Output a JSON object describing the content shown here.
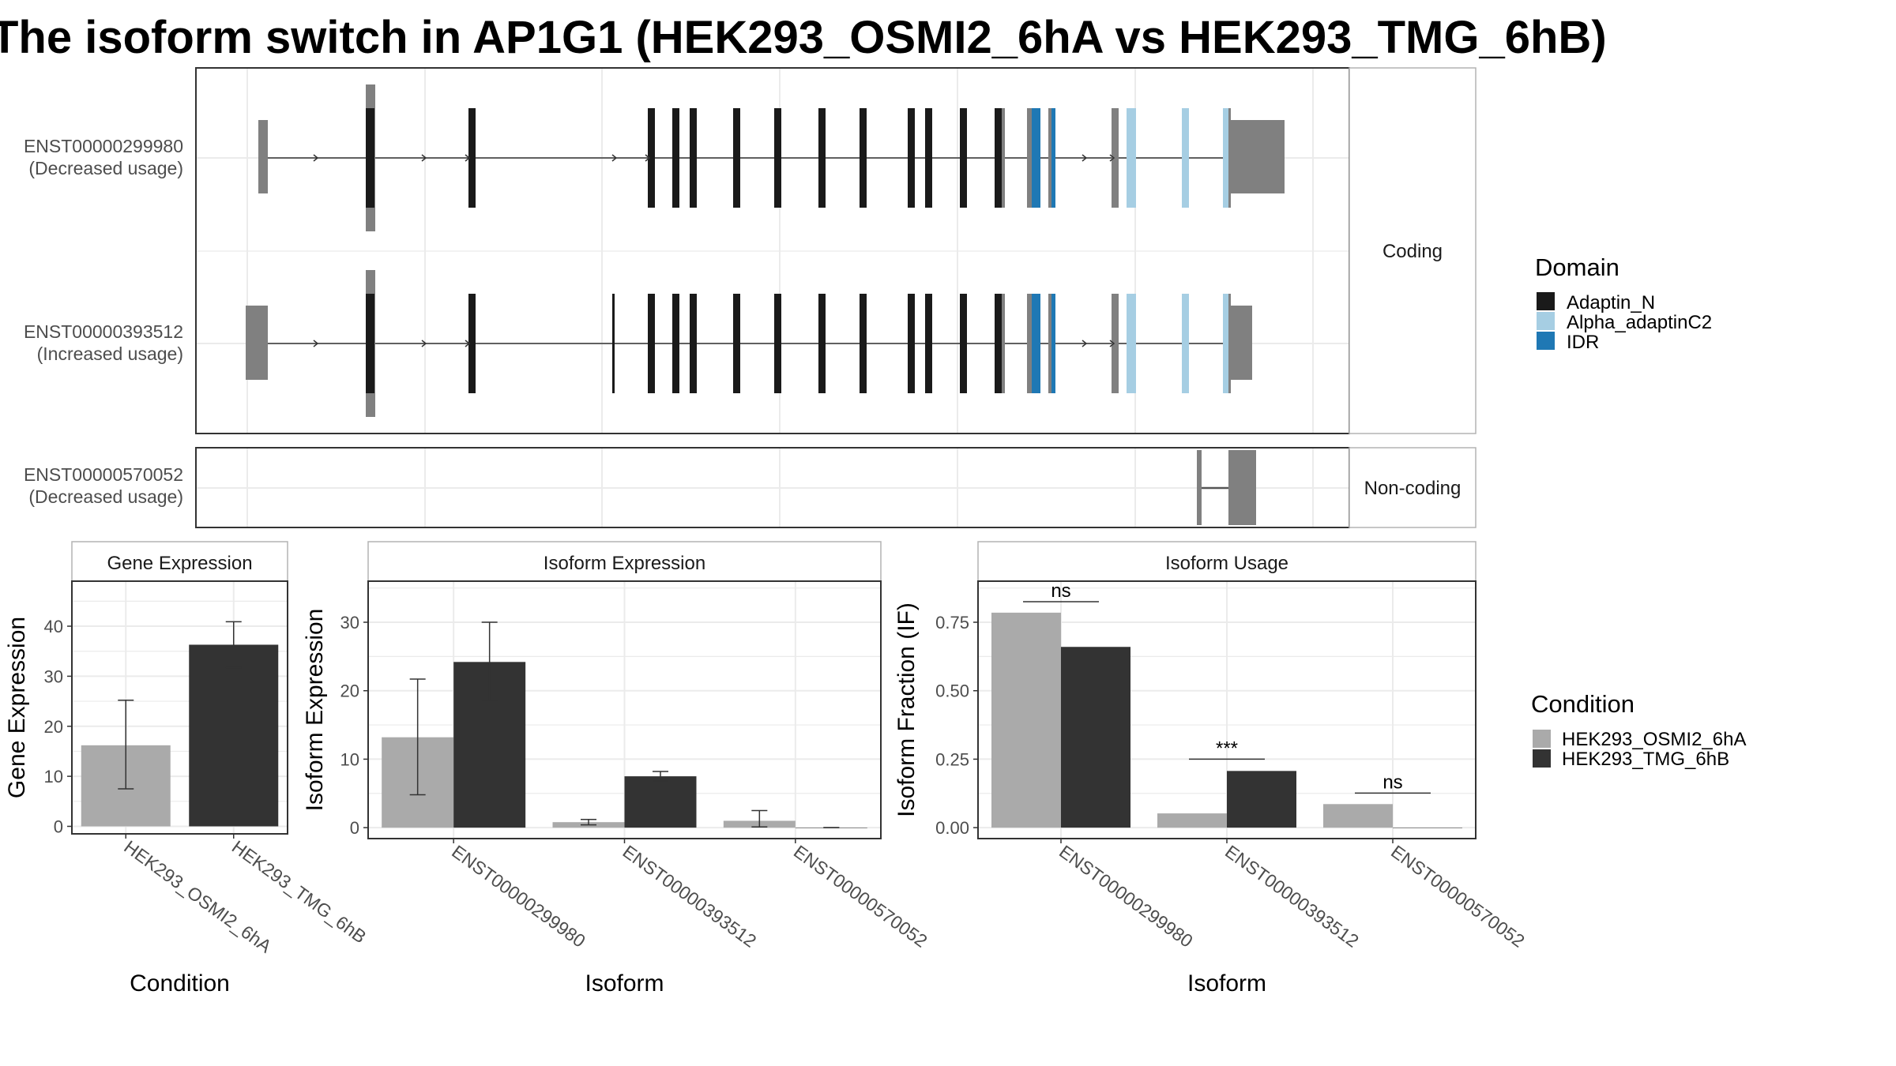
{
  "title": "The isoform switch in AP1G1 (HEK293_OSMI2_6hA vs HEK293_TMG_6hB)",
  "colors": {
    "utr": "#808080",
    "adaptin_n": "#1a1a1a",
    "alpha_adaptinc2": "#a6cee3",
    "idr": "#1f78b4",
    "cond_a": "#aaaaaa",
    "cond_b": "#333333",
    "panel_border": "#333333",
    "strip_border": "#b3b3b3",
    "grid": "#ebebeb"
  },
  "structure": {
    "transcripts": [
      {
        "id": "ENST00000299980",
        "usage": "(Decreased usage)",
        "group": "Coding"
      },
      {
        "id": "ENST00000393512",
        "usage": "(Increased usage)",
        "group": "Coding"
      },
      {
        "id": "ENST00000570052",
        "usage": "(Decreased usage)",
        "group": "Non-coding"
      }
    ],
    "strips": [
      "Coding",
      "Non-coding"
    ]
  },
  "legend_domain": {
    "title": "Domain",
    "items": [
      {
        "label": "Adaptin_N",
        "color": "#1a1a1a"
      },
      {
        "label": "Alpha_adaptinC2",
        "color": "#a6cee3"
      },
      {
        "label": "IDR",
        "color": "#1f78b4"
      }
    ]
  },
  "legend_condition": {
    "title": "Condition",
    "items": [
      {
        "label": "HEK293_OSMI2_6hA",
        "color": "#aaaaaa"
      },
      {
        "label": "HEK293_TMG_6hB",
        "color": "#333333"
      }
    ]
  },
  "chart_data": [
    {
      "type": "bar",
      "title": "Gene Expression",
      "xlabel": "Condition",
      "ylabel": "Gene Expression",
      "categories": [
        "HEK293_OSMI2_6hA",
        "HEK293_TMG_6hB"
      ],
      "values": [
        16.2,
        36.3
      ],
      "error_low": [
        7.5,
        31.7
      ],
      "error_high": [
        25.2,
        40.9
      ],
      "ylim": [
        -1.5,
        49
      ],
      "yticks": [
        0,
        10,
        20,
        30,
        40
      ]
    },
    {
      "type": "bar",
      "title": "Isoform Expression",
      "xlabel": "Isoform",
      "ylabel": "Isoform Expression",
      "categories": [
        "ENST00000299980",
        "ENST00000393512",
        "ENST00000570052"
      ],
      "series": [
        {
          "name": "HEK293_OSMI2_6hA",
          "values": [
            13.2,
            0.8,
            1.0
          ],
          "error_low": [
            4.8,
            0.4,
            0.1
          ],
          "error_high": [
            21.7,
            1.2,
            2.5
          ]
        },
        {
          "name": "HEK293_TMG_6hB",
          "values": [
            24.2,
            7.5,
            0.0
          ],
          "error_low": [
            18.6,
            6.8,
            0.0
          ],
          "error_high": [
            30.0,
            8.2,
            0.0
          ]
        }
      ],
      "ylim": [
        -1.6,
        36
      ],
      "yticks": [
        0,
        10,
        20,
        30
      ]
    },
    {
      "type": "bar",
      "title": "Isoform Usage",
      "xlabel": "Isoform",
      "ylabel": "Isoform Fraction (IF)",
      "categories": [
        "ENST00000299980",
        "ENST00000393512",
        "ENST00000570052"
      ],
      "series": [
        {
          "name": "HEK293_OSMI2_6hA",
          "values": [
            0.785,
            0.052,
            0.086
          ]
        },
        {
          "name": "HEK293_TMG_6hB",
          "values": [
            0.66,
            0.207,
            0.0
          ]
        }
      ],
      "significance": [
        {
          "label": "ns",
          "y": 0.825
        },
        {
          "label": "***",
          "y": 0.25
        },
        {
          "label": "ns",
          "y": 0.126
        }
      ],
      "ylim": [
        -0.04,
        0.9
      ],
      "yticks": [
        0.0,
        0.25,
        0.5,
        0.75
      ],
      "ytick_labels": [
        "0.00",
        "0.25",
        "0.50",
        "0.75"
      ]
    }
  ]
}
